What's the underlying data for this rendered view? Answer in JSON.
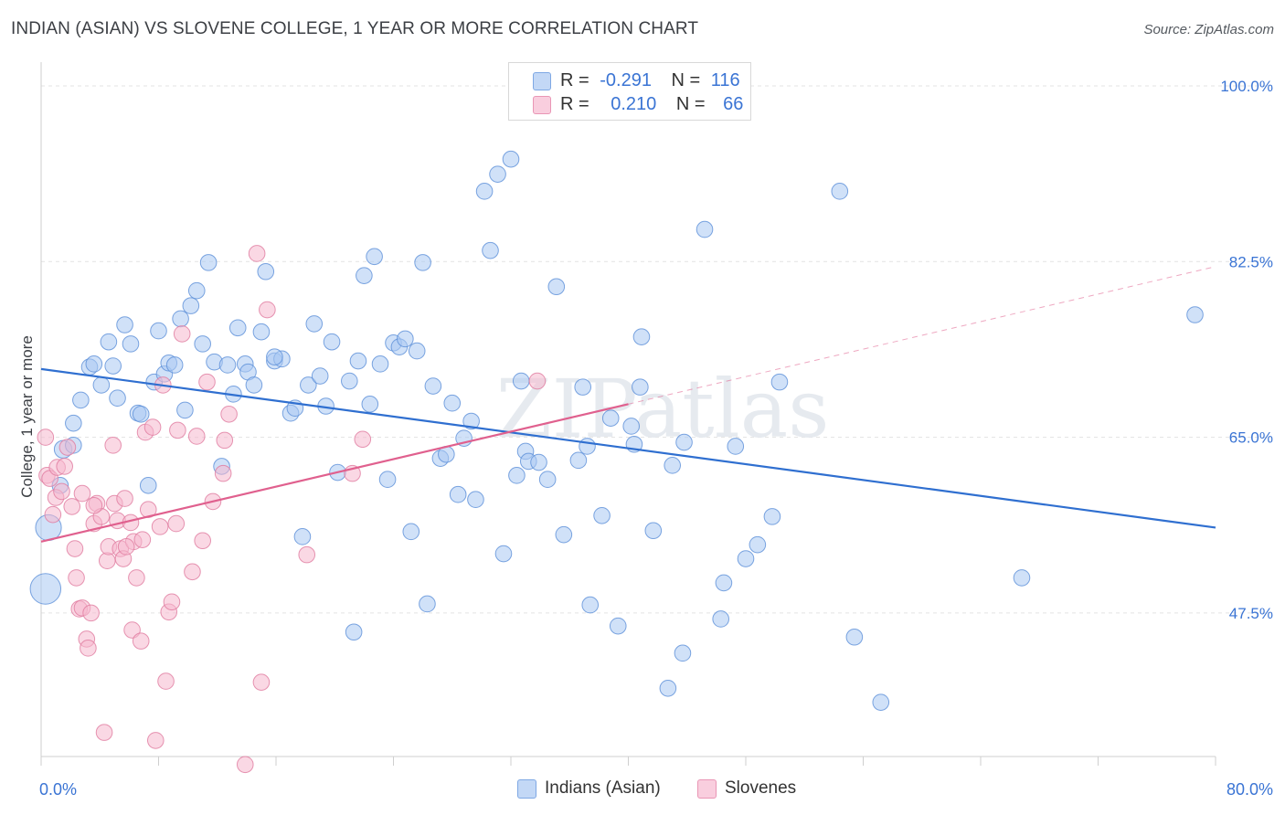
{
  "title": "INDIAN (ASIAN) VS SLOVENE COLLEGE, 1 YEAR OR MORE CORRELATION CHART",
  "source": "Source: ZipAtlas.com",
  "legend": {
    "rows": [
      {
        "r_label": "R =",
        "r_value": "-0.291",
        "n_label": "N =",
        "n_value": "116",
        "color": "#a9c8f2"
      },
      {
        "r_label": "R =",
        "r_value": "0.210",
        "n_label": "N =",
        "n_value": "66",
        "color": "#f6b8cd"
      }
    ]
  },
  "bottom_legend": [
    "Indians (Asian)",
    "Slovenes"
  ],
  "chart_data": {
    "type": "scatter",
    "title": "INDIAN (ASIAN) VS SLOVENE COLLEGE, 1 YEAR OR MORE CORRELATION CHART",
    "xlabel": "",
    "ylabel": "College, 1 year or more",
    "xlim": [
      0,
      80
    ],
    "ylim": [
      33.2,
      102
    ],
    "x_tick_labels": [
      "0.0%",
      "80.0%"
    ],
    "y_ticks": [
      47.5,
      65.0,
      82.5,
      100.0
    ],
    "y_tick_labels": [
      "47.5%",
      "65.0%",
      "82.5%",
      "100.0%"
    ],
    "grid": true,
    "legend_position": "top-center",
    "watermark": "ZIPatlas",
    "series": [
      {
        "name": "Indians (Asian)",
        "color": "#a9c8f2",
        "stroke": "#5b8fd8",
        "trend": {
          "x": [
            0,
            80
          ],
          "y": [
            71.8,
            56.0
          ],
          "color": "#2f6fd0"
        },
        "points": [
          [
            0.5,
            56.0,
            1.6
          ],
          [
            0.3,
            49.9,
            1.9
          ],
          [
            1.3,
            60.2,
            1
          ],
          [
            1.5,
            63.8,
            1.1
          ],
          [
            2.2,
            64.2,
            1
          ],
          [
            2.2,
            66.4,
            1
          ],
          [
            2.7,
            68.7,
            1
          ],
          [
            3.3,
            72.0,
            1
          ],
          [
            3.6,
            72.3,
            1
          ],
          [
            4.1,
            70.2,
            1
          ],
          [
            4.6,
            74.5,
            1
          ],
          [
            4.9,
            72.1,
            1
          ],
          [
            5.2,
            68.9,
            1
          ],
          [
            5.7,
            76.2,
            1
          ],
          [
            6.1,
            74.3,
            1
          ],
          [
            6.6,
            67.4,
            1
          ],
          [
            6.8,
            67.3,
            1
          ],
          [
            7.3,
            60.2,
            1
          ],
          [
            7.7,
            70.5,
            1
          ],
          [
            8.0,
            75.6,
            1
          ],
          [
            8.4,
            71.3,
            1
          ],
          [
            8.7,
            72.4,
            1
          ],
          [
            9.1,
            72.2,
            1
          ],
          [
            9.5,
            76.8,
            1
          ],
          [
            9.8,
            67.7,
            1
          ],
          [
            10.2,
            78.1,
            1
          ],
          [
            10.6,
            79.6,
            1
          ],
          [
            11.0,
            74.3,
            1
          ],
          [
            11.4,
            82.4,
            1
          ],
          [
            11.8,
            72.5,
            1
          ],
          [
            12.3,
            62.1,
            1
          ],
          [
            12.7,
            72.2,
            1
          ],
          [
            13.1,
            69.3,
            1
          ],
          [
            13.4,
            75.9,
            1
          ],
          [
            13.9,
            72.3,
            1
          ],
          [
            14.1,
            71.5,
            1
          ],
          [
            14.5,
            70.2,
            1
          ],
          [
            15.0,
            75.5,
            1
          ],
          [
            15.3,
            81.5,
            1
          ],
          [
            15.9,
            72.6,
            1
          ],
          [
            16.4,
            72.8,
            1
          ],
          [
            17.0,
            67.4,
            1
          ],
          [
            17.3,
            67.9,
            1
          ],
          [
            17.8,
            55.1,
            1
          ],
          [
            18.2,
            70.2,
            1
          ],
          [
            18.6,
            76.3,
            1
          ],
          [
            19.0,
            71.1,
            1
          ],
          [
            19.4,
            68.1,
            1
          ],
          [
            19.8,
            74.5,
            1
          ],
          [
            20.2,
            61.5,
            1
          ],
          [
            21.0,
            70.6,
            1
          ],
          [
            21.3,
            45.6,
            1
          ],
          [
            21.6,
            72.6,
            1
          ],
          [
            22.0,
            81.1,
            1
          ],
          [
            22.4,
            68.3,
            1
          ],
          [
            22.7,
            83.0,
            1
          ],
          [
            23.1,
            72.3,
            1
          ],
          [
            23.6,
            60.8,
            1
          ],
          [
            24.0,
            74.4,
            1
          ],
          [
            24.4,
            74.0,
            1
          ],
          [
            24.8,
            74.8,
            1
          ],
          [
            25.2,
            55.6,
            1
          ],
          [
            25.6,
            73.6,
            1
          ],
          [
            26.0,
            82.4,
            1
          ],
          [
            26.3,
            48.4,
            1
          ],
          [
            26.7,
            70.1,
            1
          ],
          [
            27.2,
            62.9,
            1
          ],
          [
            27.6,
            63.3,
            1
          ],
          [
            28.0,
            68.4,
            1
          ],
          [
            28.4,
            59.3,
            1
          ],
          [
            28.8,
            64.9,
            1
          ],
          [
            29.3,
            66.6,
            1
          ],
          [
            29.6,
            58.8,
            1
          ],
          [
            30.2,
            89.5,
            1
          ],
          [
            30.6,
            83.6,
            1
          ],
          [
            31.1,
            91.2,
            1
          ],
          [
            31.5,
            53.4,
            1
          ],
          [
            32.0,
            92.7,
            1
          ],
          [
            32.4,
            61.2,
            1
          ],
          [
            32.7,
            70.6,
            1
          ],
          [
            33.0,
            63.6,
            1
          ],
          [
            33.2,
            62.6,
            1
          ],
          [
            34.5,
            60.8,
            1
          ],
          [
            35.1,
            80.0,
            1
          ],
          [
            35.6,
            55.3,
            1
          ],
          [
            36.6,
            62.7,
            1
          ],
          [
            36.9,
            70.0,
            1
          ],
          [
            37.2,
            64.1,
            1
          ],
          [
            37.4,
            48.3,
            1
          ],
          [
            38.2,
            57.2,
            1
          ],
          [
            38.8,
            66.9,
            1
          ],
          [
            39.3,
            46.2,
            1
          ],
          [
            40.2,
            66.1,
            1
          ],
          [
            40.8,
            70.0,
            1
          ],
          [
            40.9,
            75.0,
            1
          ],
          [
            41.7,
            55.7,
            1
          ],
          [
            42.7,
            40.0,
            1
          ],
          [
            43.0,
            62.2,
            1
          ],
          [
            43.7,
            43.5,
            1
          ],
          [
            43.8,
            64.5,
            1
          ],
          [
            45.2,
            85.7,
            1
          ],
          [
            46.3,
            46.9,
            1
          ],
          [
            46.5,
            50.5,
            1
          ],
          [
            47.3,
            64.1,
            1
          ],
          [
            48.0,
            52.9,
            1
          ],
          [
            48.8,
            54.3,
            1
          ],
          [
            49.8,
            57.1,
            1
          ],
          [
            50.3,
            70.5,
            1
          ],
          [
            54.4,
            89.5,
            1
          ],
          [
            55.4,
            45.1,
            1
          ],
          [
            57.2,
            38.6,
            1
          ],
          [
            66.8,
            51.0,
            1
          ],
          [
            78.6,
            77.2,
            1
          ],
          [
            40.4,
            64.3,
            1
          ],
          [
            33.9,
            62.5,
            1
          ],
          [
            15.9,
            73.0,
            1
          ]
        ]
      },
      {
        "name": "Slovenes",
        "color": "#f6b8cd",
        "stroke": "#e07a9f",
        "trend": {
          "x": [
            0,
            40
          ],
          "y": [
            54.6,
            68.3
          ],
          "color": "#e0608e",
          "dashed_extension": {
            "x": [
              40,
              80
            ],
            "y": [
              68.3,
              82.0
            ]
          }
        },
        "points": [
          [
            0.3,
            65.0,
            1
          ],
          [
            0.4,
            61.2,
            1
          ],
          [
            0.6,
            60.9,
            1
          ],
          [
            0.8,
            57.3,
            1
          ],
          [
            1.0,
            59.0,
            1
          ],
          [
            1.1,
            62.0,
            1
          ],
          [
            1.4,
            59.6,
            1
          ],
          [
            1.8,
            64.0,
            1
          ],
          [
            2.1,
            58.1,
            1
          ],
          [
            2.3,
            53.9,
            1
          ],
          [
            2.4,
            51.0,
            1
          ],
          [
            2.6,
            47.9,
            1
          ],
          [
            2.8,
            48.0,
            1
          ],
          [
            3.1,
            44.9,
            1
          ],
          [
            3.2,
            44.0,
            1
          ],
          [
            3.4,
            47.5,
            1
          ],
          [
            3.6,
            56.4,
            1
          ],
          [
            3.8,
            58.4,
            1
          ],
          [
            4.1,
            57.1,
            1
          ],
          [
            4.3,
            35.6,
            1
          ],
          [
            4.5,
            52.7,
            1
          ],
          [
            4.6,
            54.1,
            1
          ],
          [
            4.9,
            64.2,
            1
          ],
          [
            5.0,
            58.4,
            1
          ],
          [
            5.2,
            56.7,
            1
          ],
          [
            5.4,
            53.9,
            1
          ],
          [
            5.6,
            52.9,
            1
          ],
          [
            5.7,
            58.9,
            1
          ],
          [
            6.1,
            56.5,
            1
          ],
          [
            6.2,
            45.8,
            1
          ],
          [
            6.3,
            54.6,
            1
          ],
          [
            6.5,
            51.0,
            1
          ],
          [
            6.8,
            44.7,
            1
          ],
          [
            6.9,
            54.8,
            1
          ],
          [
            7.1,
            65.5,
            1
          ],
          [
            7.3,
            57.8,
            1
          ],
          [
            7.6,
            66.0,
            1
          ],
          [
            7.8,
            34.8,
            1
          ],
          [
            8.1,
            56.1,
            1
          ],
          [
            8.3,
            70.2,
            1
          ],
          [
            8.5,
            40.7,
            1
          ],
          [
            8.7,
            47.6,
            1
          ],
          [
            8.9,
            48.6,
            1
          ],
          [
            9.2,
            56.4,
            1
          ],
          [
            9.3,
            65.7,
            1
          ],
          [
            9.6,
            75.3,
            1
          ],
          [
            10.3,
            51.6,
            1
          ],
          [
            10.6,
            65.1,
            1
          ],
          [
            11.0,
            54.7,
            1
          ],
          [
            11.3,
            70.5,
            1
          ],
          [
            11.7,
            58.6,
            1
          ],
          [
            12.4,
            61.4,
            1
          ],
          [
            12.5,
            64.7,
            1
          ],
          [
            12.8,
            67.3,
            1
          ],
          [
            13.9,
            32.4,
            1
          ],
          [
            14.7,
            83.3,
            1
          ],
          [
            15.0,
            40.6,
            1
          ],
          [
            15.4,
            77.7,
            1
          ],
          [
            18.1,
            53.3,
            1
          ],
          [
            21.2,
            61.4,
            1
          ],
          [
            21.9,
            64.8,
            1
          ],
          [
            33.8,
            70.6,
            1
          ],
          [
            1.6,
            62.1,
            1
          ],
          [
            3.6,
            58.2,
            1
          ],
          [
            5.8,
            54.1,
            1
          ],
          [
            2.8,
            59.4,
            1
          ]
        ]
      }
    ]
  }
}
